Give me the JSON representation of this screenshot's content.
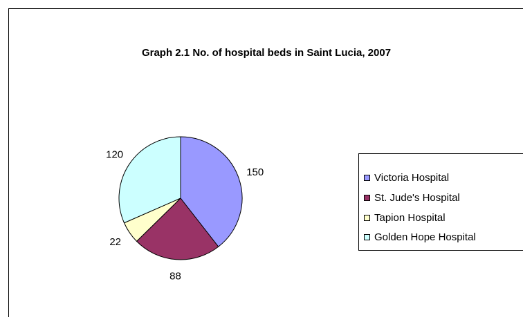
{
  "chart_data": {
    "type": "pie",
    "title": "Graph 2.1 No. of hospital beds in Saint Lucia, 2007",
    "categories": [
      "Victoria Hospital",
      "St. Jude's Hospital",
      "Tapion Hospital",
      "Golden Hope Hospital"
    ],
    "values": [
      150,
      88,
      22,
      120
    ],
    "colors": [
      "#9999ff",
      "#993366",
      "#ffffcc",
      "#ccffff"
    ],
    "legend": "right"
  }
}
